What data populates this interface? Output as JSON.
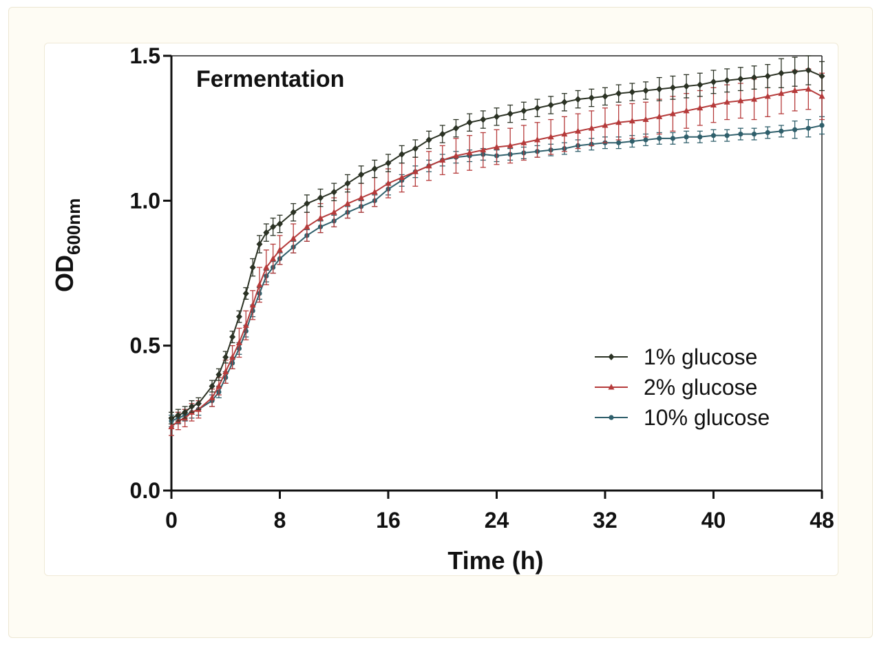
{
  "chart_data": {
    "type": "line",
    "title": "Fermentation",
    "xlabel": "Time (h)",
    "ylabel": "OD",
    "ylabel_sub": "600nm",
    "xlim": [
      0,
      48
    ],
    "ylim": [
      0,
      1.5
    ],
    "xticks": [
      "0",
      "8",
      "16",
      "24",
      "32",
      "40",
      "48"
    ],
    "yticks": [
      "0.0",
      "0.5",
      "1.0",
      "1.5"
    ],
    "grid": false,
    "legend_position": "bottom-right",
    "error_bars": true,
    "x": [
      0,
      0.5,
      1,
      1.5,
      2,
      3,
      3.5,
      4,
      4.5,
      5,
      5.5,
      6,
      6.5,
      7,
      7.5,
      8,
      9,
      10,
      11,
      12,
      13,
      14,
      15,
      16,
      17,
      18,
      19,
      20,
      21,
      22,
      23,
      24,
      25,
      26,
      27,
      28,
      29,
      30,
      31,
      32,
      33,
      34,
      35,
      36,
      37,
      38,
      39,
      40,
      41,
      42,
      43,
      44,
      45,
      46,
      47,
      48
    ],
    "series": [
      {
        "name": "1% glucose",
        "color": "#2b3224",
        "marker": "diamond",
        "values": [
          0.25,
          0.26,
          0.27,
          0.29,
          0.3,
          0.36,
          0.4,
          0.46,
          0.53,
          0.6,
          0.68,
          0.77,
          0.85,
          0.89,
          0.91,
          0.92,
          0.96,
          0.99,
          1.01,
          1.03,
          1.06,
          1.09,
          1.11,
          1.13,
          1.16,
          1.18,
          1.21,
          1.23,
          1.25,
          1.27,
          1.28,
          1.29,
          1.3,
          1.31,
          1.32,
          1.33,
          1.34,
          1.35,
          1.355,
          1.36,
          1.37,
          1.375,
          1.38,
          1.385,
          1.39,
          1.395,
          1.4,
          1.41,
          1.415,
          1.42,
          1.425,
          1.43,
          1.44,
          1.445,
          1.45,
          1.43
        ],
        "errors": [
          0.02,
          0.02,
          0.02,
          0.02,
          0.02,
          0.02,
          0.02,
          0.02,
          0.02,
          0.02,
          0.02,
          0.03,
          0.03,
          0.03,
          0.03,
          0.03,
          0.03,
          0.03,
          0.03,
          0.03,
          0.03,
          0.03,
          0.03,
          0.03,
          0.03,
          0.03,
          0.03,
          0.03,
          0.03,
          0.03,
          0.03,
          0.03,
          0.03,
          0.03,
          0.03,
          0.03,
          0.03,
          0.03,
          0.03,
          0.03,
          0.03,
          0.03,
          0.03,
          0.04,
          0.04,
          0.04,
          0.04,
          0.04,
          0.04,
          0.04,
          0.04,
          0.04,
          0.05,
          0.05,
          0.05,
          0.05
        ]
      },
      {
        "name": "2% glucose",
        "color": "#b53a3a",
        "marker": "triangle",
        "values": [
          0.22,
          0.24,
          0.25,
          0.27,
          0.28,
          0.32,
          0.36,
          0.41,
          0.46,
          0.51,
          0.57,
          0.64,
          0.71,
          0.77,
          0.8,
          0.83,
          0.87,
          0.91,
          0.94,
          0.96,
          0.99,
          1.01,
          1.03,
          1.06,
          1.08,
          1.1,
          1.12,
          1.14,
          1.155,
          1.165,
          1.175,
          1.185,
          1.19,
          1.2,
          1.21,
          1.22,
          1.23,
          1.24,
          1.25,
          1.26,
          1.27,
          1.275,
          1.28,
          1.29,
          1.3,
          1.31,
          1.32,
          1.33,
          1.34,
          1.345,
          1.35,
          1.36,
          1.37,
          1.38,
          1.385,
          1.36
        ],
        "errors": [
          0.03,
          0.03,
          0.03,
          0.03,
          0.03,
          0.03,
          0.03,
          0.04,
          0.04,
          0.05,
          0.05,
          0.05,
          0.06,
          0.06,
          0.05,
          0.05,
          0.05,
          0.05,
          0.05,
          0.05,
          0.05,
          0.05,
          0.05,
          0.05,
          0.05,
          0.05,
          0.05,
          0.05,
          0.06,
          0.06,
          0.06,
          0.06,
          0.06,
          0.06,
          0.06,
          0.06,
          0.06,
          0.06,
          0.06,
          0.06,
          0.06,
          0.06,
          0.06,
          0.06,
          0.06,
          0.06,
          0.06,
          0.06,
          0.06,
          0.06,
          0.07,
          0.07,
          0.07,
          0.07,
          0.07,
          0.08
        ]
      },
      {
        "name": "10% glucose",
        "color": "#2f5f6b",
        "marker": "circle",
        "values": [
          0.24,
          0.25,
          0.26,
          0.27,
          0.28,
          0.31,
          0.34,
          0.39,
          0.44,
          0.49,
          0.55,
          0.62,
          0.68,
          0.74,
          0.77,
          0.8,
          0.84,
          0.88,
          0.91,
          0.93,
          0.96,
          0.98,
          1.0,
          1.04,
          1.07,
          1.1,
          1.12,
          1.14,
          1.15,
          1.155,
          1.16,
          1.155,
          1.16,
          1.165,
          1.17,
          1.175,
          1.18,
          1.19,
          1.195,
          1.2,
          1.2,
          1.205,
          1.21,
          1.215,
          1.215,
          1.22,
          1.22,
          1.225,
          1.225,
          1.23,
          1.23,
          1.235,
          1.24,
          1.245,
          1.25,
          1.26
        ],
        "errors": [
          0.02,
          0.02,
          0.02,
          0.02,
          0.02,
          0.02,
          0.02,
          0.02,
          0.02,
          0.02,
          0.02,
          0.02,
          0.02,
          0.02,
          0.02,
          0.02,
          0.02,
          0.02,
          0.02,
          0.02,
          0.02,
          0.02,
          0.02,
          0.02,
          0.02,
          0.02,
          0.02,
          0.02,
          0.02,
          0.02,
          0.02,
          0.02,
          0.02,
          0.02,
          0.02,
          0.02,
          0.02,
          0.02,
          0.02,
          0.02,
          0.02,
          0.02,
          0.02,
          0.02,
          0.02,
          0.02,
          0.02,
          0.02,
          0.02,
          0.02,
          0.02,
          0.02,
          0.02,
          0.03,
          0.03,
          0.03
        ]
      }
    ]
  }
}
